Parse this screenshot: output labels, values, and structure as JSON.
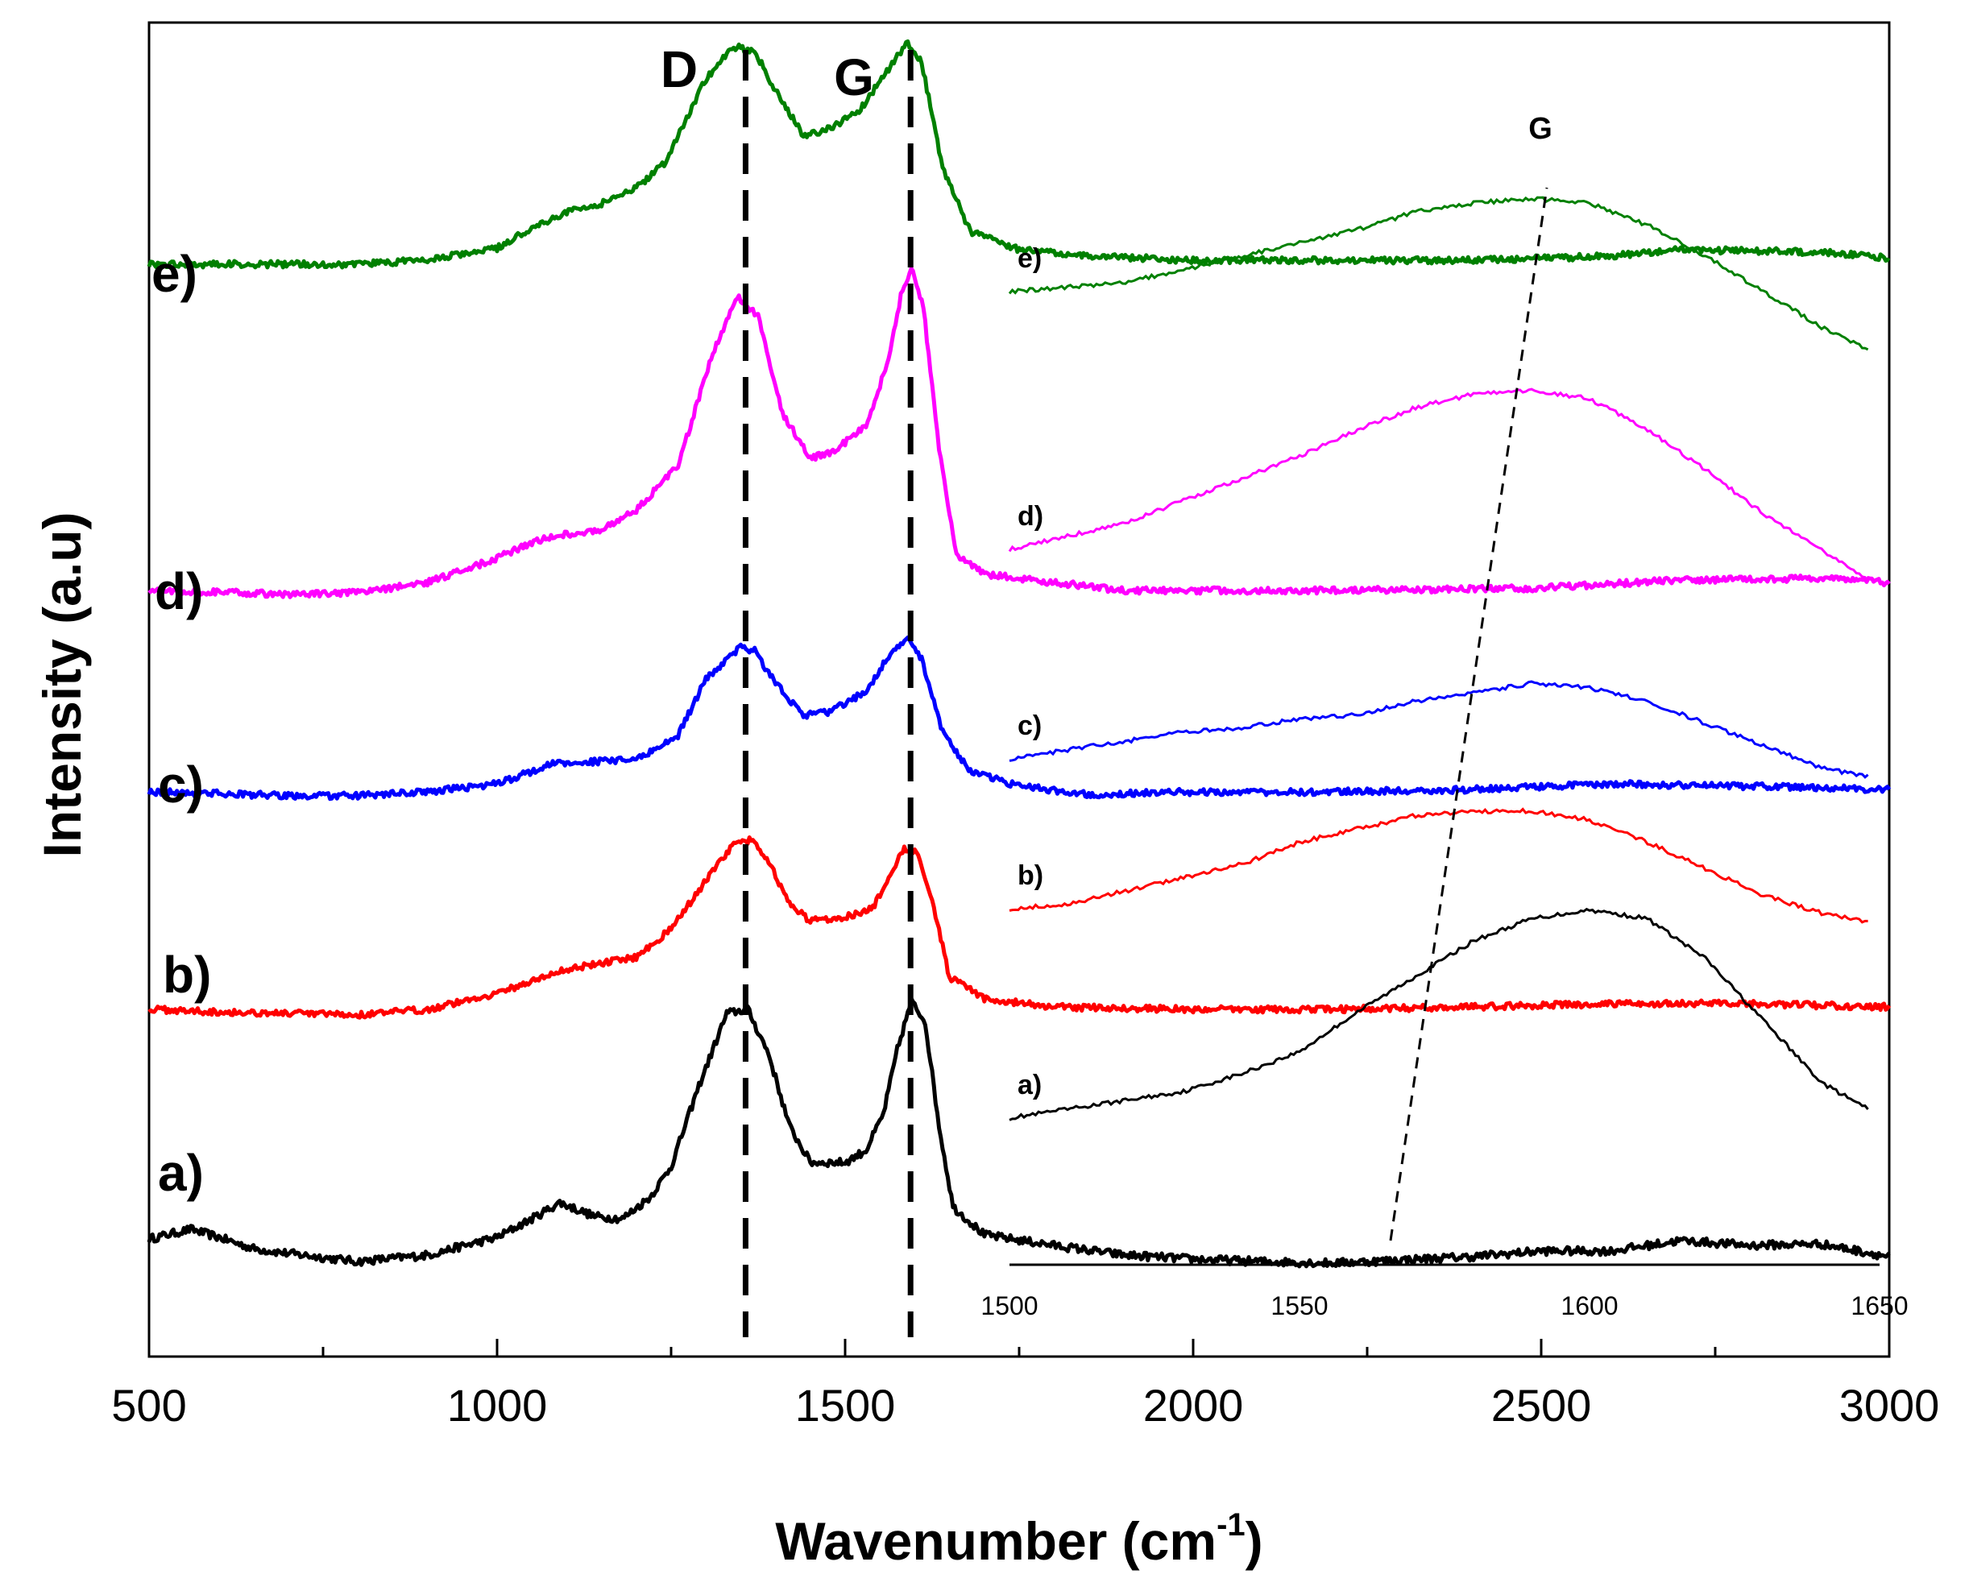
{
  "chart_data": {
    "type": "line",
    "title": "",
    "xlabel": "Wavenumber (cm",
    "xlabel_sup": "-1",
    "xlabel_close": ")",
    "ylabel": "Intensity (a.u)",
    "xlim": [
      500,
      3000
    ],
    "x_ticks": [
      "500",
      "1000",
      "1500",
      "2000",
      "2500",
      "3000"
    ],
    "x_tick_values": [
      500,
      1000,
      1500,
      2000,
      2500,
      3000
    ],
    "band_labels": [
      {
        "label": "D",
        "x": 1357
      },
      {
        "label": "G",
        "x": 1594
      }
    ],
    "series": [
      {
        "name": "a)",
        "color": "#000000",
        "offset": 0,
        "noise": 5,
        "points": [
          [
            500,
            20
          ],
          [
            560,
            32
          ],
          [
            600,
            22
          ],
          [
            650,
            8
          ],
          [
            700,
            2
          ],
          [
            800,
            -8
          ],
          [
            900,
            0
          ],
          [
            1000,
            22
          ],
          [
            1050,
            45
          ],
          [
            1090,
            65
          ],
          [
            1140,
            48
          ],
          [
            1180,
            45
          ],
          [
            1220,
            72
          ],
          [
            1250,
            110
          ],
          [
            1290,
            210
          ],
          [
            1330,
            300
          ],
          [
            1360,
            305
          ],
          [
            1390,
            250
          ],
          [
            1420,
            160
          ],
          [
            1450,
            115
          ],
          [
            1500,
            115
          ],
          [
            1530,
            130
          ],
          [
            1555,
            175
          ],
          [
            1575,
            255
          ],
          [
            1595,
            315
          ],
          [
            1615,
            290
          ],
          [
            1635,
            160
          ],
          [
            1655,
            60
          ],
          [
            1700,
            25
          ],
          [
            1800,
            12
          ],
          [
            1900,
            0
          ],
          [
            2000,
            -5
          ],
          [
            2100,
            -8
          ],
          [
            2200,
            -10
          ],
          [
            2300,
            -6
          ],
          [
            2400,
            -2
          ],
          [
            2500,
            5
          ],
          [
            2600,
            5
          ],
          [
            2700,
            18
          ],
          [
            2800,
            12
          ],
          [
            2900,
            14
          ],
          [
            3000,
            -2
          ]
        ]
      },
      {
        "name": "b)",
        "color": "#ff0000",
        "offset": 300,
        "noise": 4,
        "points": [
          [
            500,
            5
          ],
          [
            600,
            2
          ],
          [
            700,
            0
          ],
          [
            800,
            -2
          ],
          [
            900,
            5
          ],
          [
            1000,
            25
          ],
          [
            1100,
            55
          ],
          [
            1200,
            70
          ],
          [
            1250,
            105
          ],
          [
            1300,
            165
          ],
          [
            1340,
            210
          ],
          [
            1365,
            215
          ],
          [
            1390,
            190
          ],
          [
            1420,
            135
          ],
          [
            1450,
            115
          ],
          [
            1500,
            120
          ],
          [
            1540,
            130
          ],
          [
            1560,
            165
          ],
          [
            1585,
            205
          ],
          [
            1605,
            200
          ],
          [
            1625,
            140
          ],
          [
            1650,
            45
          ],
          [
            1700,
            18
          ],
          [
            1800,
            8
          ],
          [
            2000,
            5
          ],
          [
            2200,
            5
          ],
          [
            2400,
            8
          ],
          [
            2600,
            12
          ],
          [
            2800,
            12
          ],
          [
            3000,
            8
          ]
        ]
      },
      {
        "name": "c)",
        "color": "#0000ff",
        "offset": 570,
        "noise": 4,
        "points": [
          [
            500,
            5
          ],
          [
            600,
            3
          ],
          [
            700,
            0
          ],
          [
            800,
            0
          ],
          [
            900,
            5
          ],
          [
            1000,
            15
          ],
          [
            1080,
            40
          ],
          [
            1200,
            45
          ],
          [
            1260,
            75
          ],
          [
            1300,
            145
          ],
          [
            1350,
            185
          ],
          [
            1370,
            180
          ],
          [
            1400,
            140
          ],
          [
            1440,
            100
          ],
          [
            1480,
            105
          ],
          [
            1530,
            130
          ],
          [
            1560,
            170
          ],
          [
            1590,
            195
          ],
          [
            1610,
            170
          ],
          [
            1640,
            80
          ],
          [
            1680,
            30
          ],
          [
            1750,
            12
          ],
          [
            1850,
            2
          ],
          [
            2000,
            5
          ],
          [
            2200,
            5
          ],
          [
            2400,
            8
          ],
          [
            2600,
            15
          ],
          [
            2800,
            12
          ],
          [
            3000,
            8
          ]
        ]
      },
      {
        "name": "d)",
        "color": "#ff00ff",
        "offset": 820,
        "noise": 4,
        "points": [
          [
            500,
            5
          ],
          [
            600,
            3
          ],
          [
            700,
            0
          ],
          [
            800,
            2
          ],
          [
            900,
            15
          ],
          [
            1000,
            45
          ],
          [
            1050,
            65
          ],
          [
            1100,
            75
          ],
          [
            1150,
            80
          ],
          [
            1200,
            105
          ],
          [
            1260,
            160
          ],
          [
            1310,
            300
          ],
          [
            1345,
            370
          ],
          [
            1375,
            345
          ],
          [
            1410,
            225
          ],
          [
            1450,
            170
          ],
          [
            1480,
            175
          ],
          [
            1530,
            210
          ],
          [
            1560,
            285
          ],
          [
            1580,
            370
          ],
          [
            1595,
            405
          ],
          [
            1612,
            360
          ],
          [
            1635,
            180
          ],
          [
            1660,
            50
          ],
          [
            1700,
            25
          ],
          [
            1800,
            15
          ],
          [
            1900,
            5
          ],
          [
            2000,
            5
          ],
          [
            2200,
            5
          ],
          [
            2500,
            8
          ],
          [
            2700,
            18
          ],
          [
            2900,
            20
          ],
          [
            3000,
            15
          ]
        ]
      },
      {
        "name": "e)",
        "color": "#008000",
        "offset": 1230,
        "noise": 4,
        "points": [
          [
            500,
            0
          ],
          [
            600,
            0
          ],
          [
            700,
            0
          ],
          [
            800,
            0
          ],
          [
            900,
            5
          ],
          [
            1000,
            20
          ],
          [
            1050,
            45
          ],
          [
            1100,
            65
          ],
          [
            1150,
            75
          ],
          [
            1200,
            95
          ],
          [
            1240,
            125
          ],
          [
            1300,
            230
          ],
          [
            1340,
            270
          ],
          [
            1370,
            265
          ],
          [
            1400,
            215
          ],
          [
            1440,
            160
          ],
          [
            1470,
            165
          ],
          [
            1520,
            190
          ],
          [
            1560,
            240
          ],
          [
            1590,
            275
          ],
          [
            1610,
            250
          ],
          [
            1640,
            120
          ],
          [
            1680,
            40
          ],
          [
            1750,
            18
          ],
          [
            1850,
            10
          ],
          [
            2000,
            5
          ],
          [
            2200,
            5
          ],
          [
            2400,
            5
          ],
          [
            2600,
            10
          ],
          [
            2700,
            18
          ],
          [
            2900,
            15
          ],
          [
            3000,
            8
          ]
        ]
      }
    ],
    "series_labels": [
      "a)",
      "b)",
      "c)",
      "d)",
      "e)"
    ],
    "inset": {
      "xlim": [
        1500,
        1650
      ],
      "x_ticks": [
        "1500",
        "1550",
        "1600",
        "1650"
      ],
      "x_tick_values": [
        1500,
        1550,
        1600,
        1650
      ],
      "peak_label": "G",
      "series": [
        {
          "name": "a)",
          "color": "#000000",
          "points": [
            [
              1500,
              0
            ],
            [
              1510,
              2
            ],
            [
              1520,
              4
            ],
            [
              1530,
              6
            ],
            [
              1540,
              10
            ],
            [
              1550,
              15
            ],
            [
              1560,
              24
            ],
            [
              1570,
              32
            ],
            [
              1580,
              40
            ],
            [
              1590,
              45
            ],
            [
              1600,
              47
            ],
            [
              1610,
              45
            ],
            [
              1620,
              36
            ],
            [
              1630,
              22
            ],
            [
              1640,
              8
            ],
            [
              1648,
              2
            ]
          ]
        },
        {
          "name": "b)",
          "color": "#ff0000",
          "points": [
            [
              1500,
              0
            ],
            [
              1510,
              1
            ],
            [
              1520,
              4
            ],
            [
              1530,
              7
            ],
            [
              1540,
              10
            ],
            [
              1550,
              15
            ],
            [
              1560,
              18
            ],
            [
              1570,
              21
            ],
            [
              1580,
              22
            ],
            [
              1590,
              22
            ],
            [
              1600,
              20
            ],
            [
              1610,
              15
            ],
            [
              1620,
              9
            ],
            [
              1630,
              3
            ],
            [
              1640,
              -1
            ],
            [
              1648,
              -3
            ]
          ]
        },
        {
          "name": "c)",
          "color": "#0000ff",
          "points": [
            [
              1500,
              0
            ],
            [
              1510,
              2
            ],
            [
              1520,
              4
            ],
            [
              1530,
              6
            ],
            [
              1540,
              7
            ],
            [
              1550,
              9
            ],
            [
              1560,
              10
            ],
            [
              1570,
              13
            ],
            [
              1580,
              15
            ],
            [
              1590,
              17
            ],
            [
              1600,
              16
            ],
            [
              1610,
              13
            ],
            [
              1620,
              8
            ],
            [
              1630,
              3
            ],
            [
              1640,
              -2
            ],
            [
              1648,
              -4
            ]
          ]
        },
        {
          "name": "d)",
          "color": "#ff00ff",
          "points": [
            [
              1500,
              0
            ],
            [
              1510,
              3
            ],
            [
              1520,
              6
            ],
            [
              1530,
              11
            ],
            [
              1540,
              16
            ],
            [
              1550,
              21
            ],
            [
              1560,
              27
            ],
            [
              1570,
              32
            ],
            [
              1580,
              35
            ],
            [
              1590,
              36
            ],
            [
              1600,
              34
            ],
            [
              1610,
              27
            ],
            [
              1620,
              18
            ],
            [
              1630,
              8
            ],
            [
              1640,
              0
            ],
            [
              1648,
              -7
            ]
          ]
        },
        {
          "name": "e)",
          "color": "#008000",
          "points": [
            [
              1500,
              0
            ],
            [
              1510,
              1
            ],
            [
              1520,
              2
            ],
            [
              1530,
              5
            ],
            [
              1540,
              8
            ],
            [
              1550,
              11
            ],
            [
              1560,
              14
            ],
            [
              1570,
              18
            ],
            [
              1580,
              20
            ],
            [
              1590,
              21
            ],
            [
              1600,
              20
            ],
            [
              1610,
              15
            ],
            [
              1620,
              8
            ],
            [
              1630,
              0
            ],
            [
              1640,
              -8
            ],
            [
              1648,
              -13
            ]
          ]
        }
      ]
    }
  }
}
